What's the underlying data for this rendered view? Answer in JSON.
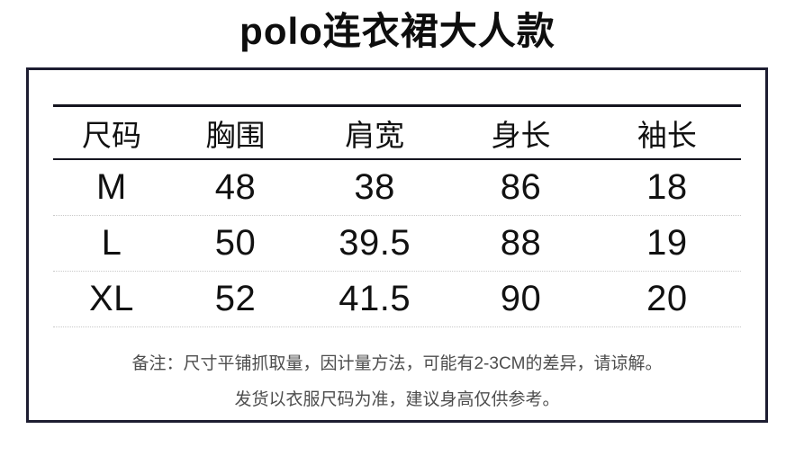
{
  "title": "polo连衣裙大人款",
  "table": {
    "columns": [
      "尺码",
      "胸围",
      "肩宽",
      "身长",
      "袖长"
    ],
    "rows": [
      {
        "cells": [
          "M",
          "48",
          "38",
          "86",
          "18"
        ]
      },
      {
        "cells": [
          "L",
          "50",
          "39.5",
          "88",
          "19"
        ]
      },
      {
        "cells": [
          "XL",
          "52",
          "41.5",
          "90",
          "20"
        ]
      }
    ]
  },
  "notes": {
    "line1": "备注：尺寸平铺抓取量，因计量方法，可能有2-3CM的差异，请谅解。",
    "line2": "发货以衣服尺码为准，建议身高仅供参考。"
  },
  "colors": {
    "background": "#ffffff",
    "text": "#111111",
    "frame_border": "#1d1d31",
    "table_rule": "#15151f",
    "row_divider": "#c9c9c9",
    "note_text": "#4d4d4d"
  }
}
